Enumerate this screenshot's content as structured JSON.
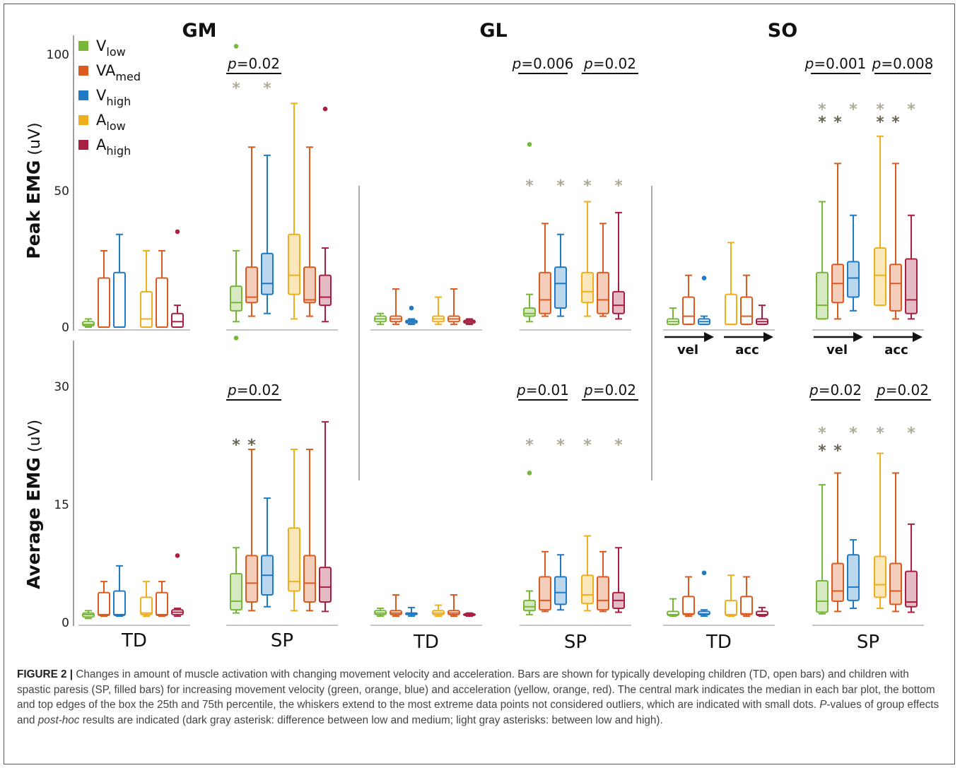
{
  "caption": {
    "label": "FIGURE 2 |",
    "p1": " Changes in amount of muscle activation with changing movement velocity and acceleration. Bars are shown for typically developing children (TD, open bars) and children with spastic paresis (SP, filled bars) for increasing movement velocity (green, orange, blue) and acceleration (yellow, orange, red). The central mark indicates the median in each bar plot, the bottom and top edges of the box the 25th and 75th percentile, the whiskers extend to the most extreme data points not considered outliers, which are indicated with small dots. ",
    "p_italic": "P",
    "p2": "-values of group effects and ",
    "posthoc_italic": "post-hoc",
    "p3": " results are indicated (dark gray asterisk: difference between low and medium; light gray asterisks: between low and high)."
  },
  "colors": {
    "V_low": "#77b737",
    "VA_med": "#dd5a1e",
    "V_high": "#1f79c4",
    "A_low": "#f0ae1c",
    "A_high": "#a81f40",
    "dark_asterisk": "#6b6654",
    "light_asterisk": "#b0aa98"
  },
  "chart_data": {
    "type": "boxplot",
    "muscles": [
      "GM",
      "GL",
      "SO"
    ],
    "groups": [
      "TD",
      "SP"
    ],
    "conditions": [
      "V_low",
      "VA_med",
      "V_high",
      "A_low",
      "A_high"
    ],
    "legend": [
      {
        "key": "V_low",
        "base": "V",
        "sub": "low"
      },
      {
        "key": "VA_med",
        "base": "VA",
        "sub": "med"
      },
      {
        "key": "V_high",
        "base": "V",
        "sub": "high"
      },
      {
        "key": "A_low",
        "base": "A",
        "sub": "low"
      },
      {
        "key": "A_high",
        "base": "A",
        "sub": "high"
      }
    ],
    "arrow_labels": [
      "vel",
      "acc"
    ],
    "panels": [
      {
        "metric": "peak",
        "ylabel": "Peak EMG (uV)",
        "ylim": [
          0,
          100
        ],
        "yticks": [
          0,
          50,
          100
        ],
        "boxes": {
          "GM": {
            "TD": [
              [
                0,
                0.5,
                1,
                2,
                3,
                []
              ],
              [
                0,
                0,
                0,
                18,
                28,
                []
              ],
              [
                0,
                0,
                0,
                20,
                34,
                []
              ],
              [
                0,
                0,
                3,
                13,
                28,
                []
              ],
              [
                0,
                0,
                0,
                18,
                28,
                []
              ],
              [
                0,
                0,
                2,
                5,
                8,
                [
                  35
                ]
              ]
            ],
            "SP": [
              [
                2,
                6,
                9,
                15,
                28,
                [
                  -4,
                  103
                ]
              ],
              [
                4,
                9,
                11,
                22,
                66,
                []
              ],
              [
                5,
                12,
                16,
                27,
                63,
                []
              ],
              [
                3,
                12,
                19,
                34,
                82,
                []
              ],
              [
                4,
                9,
                10,
                22,
                66,
                []
              ],
              [
                2,
                8,
                11,
                19,
                29,
                [
                  80
                ]
              ]
            ]
          },
          "GL": {
            "TD": [
              [
                1,
                2,
                3,
                4,
                5,
                []
              ],
              [
                1,
                2,
                3,
                4,
                14,
                []
              ],
              [
                1,
                1.5,
                2,
                2.5,
                3,
                [
                  7
                ]
              ],
              [
                1,
                2,
                3,
                4,
                11,
                []
              ],
              [
                1,
                2,
                3,
                4,
                14,
                []
              ],
              [
                1,
                1.5,
                2,
                2.5,
                3,
                []
              ]
            ],
            "SP": [
              [
                2,
                4,
                5,
                7,
                12,
                [
                  67
                ]
              ],
              [
                4,
                5,
                10,
                20,
                38,
                []
              ],
              [
                4,
                7,
                16,
                22,
                34,
                []
              ],
              [
                4,
                9,
                13,
                20,
                46,
                []
              ],
              [
                4,
                5,
                10,
                20,
                38,
                []
              ],
              [
                3,
                5,
                8,
                13,
                42,
                []
              ]
            ]
          },
          "SO": {
            "TD": [
              [
                1,
                1,
                2,
                3,
                7,
                []
              ],
              [
                1,
                1,
                4,
                11,
                19,
                []
              ],
              [
                1,
                1,
                2,
                3,
                4,
                [
                  18
                ]
              ],
              [
                1,
                1,
                1,
                12,
                31,
                []
              ],
              [
                1,
                1,
                4,
                11,
                19,
                []
              ],
              [
                1,
                1,
                2,
                3,
                8,
                []
              ]
            ],
            "SP": [
              [
                3,
                3,
                8,
                20,
                46,
                []
              ],
              [
                3,
                9,
                16,
                23,
                60,
                []
              ],
              [
                6,
                11,
                18,
                24,
                41,
                []
              ],
              [
                8,
                8,
                19,
                29,
                70,
                []
              ],
              [
                3,
                6,
                16,
                23,
                60,
                []
              ],
              [
                3,
                5,
                10,
                25,
                41,
                []
              ]
            ]
          }
        },
        "pvalues": {
          "GM": [
            "p=0.02"
          ],
          "GL": [
            "p=0.006",
            "p=0.02"
          ],
          "SO": [
            "p=0.001",
            "p=0.008"
          ]
        }
      },
      {
        "metric": "average",
        "ylabel": "Average EMG (uV)",
        "ylim": [
          0,
          30
        ],
        "yticks": [
          0,
          15,
          30
        ],
        "boxes": {
          "GM": {
            "TD": [
              [
                0.5,
                0.7,
                1,
                1.2,
                1.5,
                []
              ],
              [
                0.8,
                0.9,
                1,
                3.8,
                5.2,
                []
              ],
              [
                0.8,
                0.9,
                1,
                4,
                7.2,
                []
              ],
              [
                0.8,
                1,
                1.2,
                3.2,
                5.2,
                []
              ],
              [
                0.8,
                0.9,
                1,
                3.8,
                5.2,
                []
              ],
              [
                0.8,
                1,
                1.3,
                1.6,
                1.8,
                [
                  8.5
                ]
              ]
            ],
            "SP": [
              [
                1.2,
                1.6,
                2.7,
                6.2,
                9.5,
                []
              ],
              [
                1.5,
                2.6,
                5,
                8.5,
                22,
                []
              ],
              [
                2,
                3.5,
                6,
                8.5,
                15.8,
                []
              ],
              [
                1.5,
                4,
                5.2,
                12,
                22,
                []
              ],
              [
                1.5,
                2.6,
                5,
                8.5,
                22,
                []
              ],
              [
                1.4,
                2.6,
                4.5,
                7,
                25.5,
                []
              ]
            ]
          },
          "GL": {
            "TD": [
              [
                0.8,
                1,
                1.2,
                1.5,
                1.8,
                []
              ],
              [
                0.8,
                1,
                1.2,
                1.5,
                3.5,
                []
              ],
              [
                0.8,
                1,
                1.1,
                1.2,
                1.9,
                []
              ],
              [
                0.8,
                1,
                1.2,
                1.5,
                2.2,
                []
              ],
              [
                0.8,
                1,
                1.2,
                1.5,
                3.5,
                []
              ],
              [
                0.8,
                0.9,
                1,
                1.1,
                1.2,
                []
              ]
            ],
            "SP": [
              [
                1,
                1.5,
                2,
                2.8,
                4,
                [
                  19
                ]
              ],
              [
                1.4,
                1.6,
                2.8,
                5.8,
                9,
                []
              ],
              [
                1.6,
                2.3,
                3.8,
                5.8,
                8.6,
                []
              ],
              [
                1.5,
                2.4,
                3.5,
                6,
                11,
                []
              ],
              [
                1.4,
                1.6,
                2.8,
                5.8,
                9,
                []
              ],
              [
                1.3,
                1.8,
                2.8,
                3.8,
                9.5,
                []
              ]
            ]
          },
          "SO": {
            "TD": [
              [
                0.8,
                0.9,
                1,
                1.4,
                3,
                []
              ],
              [
                0.8,
                1,
                1.1,
                3.3,
                5.8,
                []
              ],
              [
                0.8,
                1,
                1.1,
                1.4,
                1.6,
                [
                  6.3
                ]
              ],
              [
                0.8,
                0.9,
                1,
                2.8,
                6,
                []
              ],
              [
                0.8,
                1,
                1.1,
                3.3,
                5.8,
                []
              ],
              [
                0.8,
                0.9,
                1,
                1.4,
                1.9,
                []
              ]
            ],
            "SP": [
              [
                1.1,
                1.3,
                2.7,
                5.3,
                17.5,
                []
              ],
              [
                1.4,
                2.7,
                4,
                7.5,
                19,
                []
              ],
              [
                1.8,
                2.8,
                4.5,
                8.6,
                10.5,
                []
              ],
              [
                1.8,
                3.2,
                4.8,
                8.4,
                21.5,
                []
              ],
              [
                1.4,
                2.3,
                4,
                7.5,
                19,
                []
              ],
              [
                1.3,
                2,
                2.6,
                6.5,
                12.5,
                []
              ]
            ]
          }
        },
        "pvalues": {
          "GM": [
            "p=0.02"
          ],
          "GL": [
            "p=0.01",
            "p=0.02"
          ],
          "SO": [
            "p=0.02",
            "p=0.02"
          ]
        }
      }
    ],
    "box_format": "[min, q1, median, q3, max, outliers]",
    "asterisks": {
      "peak": {
        "GM": [
          {
            "box": 0,
            "shade": "light"
          },
          {
            "box": 2,
            "shade": "light"
          }
        ],
        "GL": [
          {
            "box": 0,
            "shade": "light"
          },
          {
            "box": 2,
            "shade": "light"
          },
          {
            "box": 3,
            "shade": "light"
          },
          {
            "box": 5,
            "shade": "light"
          }
        ],
        "SO": [
          {
            "box": 0,
            "shade": "light"
          },
          {
            "box": 0,
            "shade": "dark"
          },
          {
            "box": 1,
            "shade": "dark"
          },
          {
            "box": 2,
            "shade": "light"
          },
          {
            "box": 3,
            "shade": "light"
          },
          {
            "box": 3,
            "shade": "dark"
          },
          {
            "box": 4,
            "shade": "dark"
          },
          {
            "box": 5,
            "shade": "light"
          }
        ]
      },
      "average": {
        "GM": [
          {
            "box": 0,
            "shade": "dark"
          },
          {
            "box": 1,
            "shade": "dark"
          }
        ],
        "GL": [
          {
            "box": 0,
            "shade": "light"
          },
          {
            "box": 2,
            "shade": "light"
          },
          {
            "box": 3,
            "shade": "light"
          },
          {
            "box": 5,
            "shade": "light"
          }
        ],
        "SO": [
          {
            "box": 0,
            "shade": "light"
          },
          {
            "box": 0,
            "shade": "dark"
          },
          {
            "box": 1,
            "shade": "dark"
          },
          {
            "box": 2,
            "shade": "light"
          },
          {
            "box": 3,
            "shade": "light"
          },
          {
            "box": 5,
            "shade": "light"
          }
        ]
      }
    }
  }
}
